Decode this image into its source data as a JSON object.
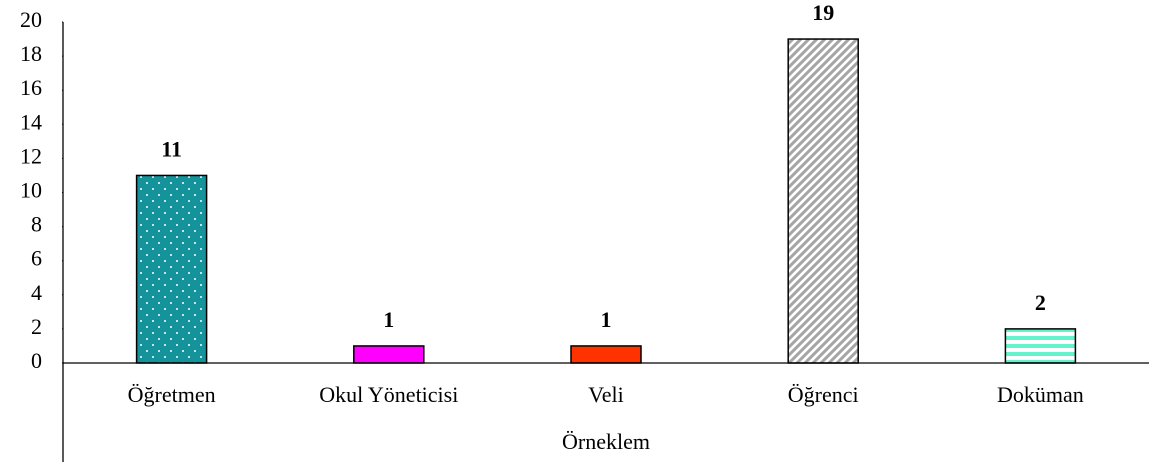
{
  "chart_data": {
    "type": "bar",
    "x_label": "Örneklem",
    "categories": [
      "Öğretmen",
      "Okul Yöneticisi",
      "Veli",
      "Öğrenci",
      "Doküman"
    ],
    "values": [
      11,
      1,
      1,
      19,
      2
    ],
    "colors": [
      "#14939b",
      "#ff00ff",
      "#ff3300",
      "#a6a6a6",
      "#66f2cc"
    ],
    "ylim": [
      0,
      20
    ],
    "yticks": [
      0,
      2,
      4,
      6,
      8,
      10,
      12,
      14,
      16,
      18,
      20
    ],
    "grid": false
  }
}
